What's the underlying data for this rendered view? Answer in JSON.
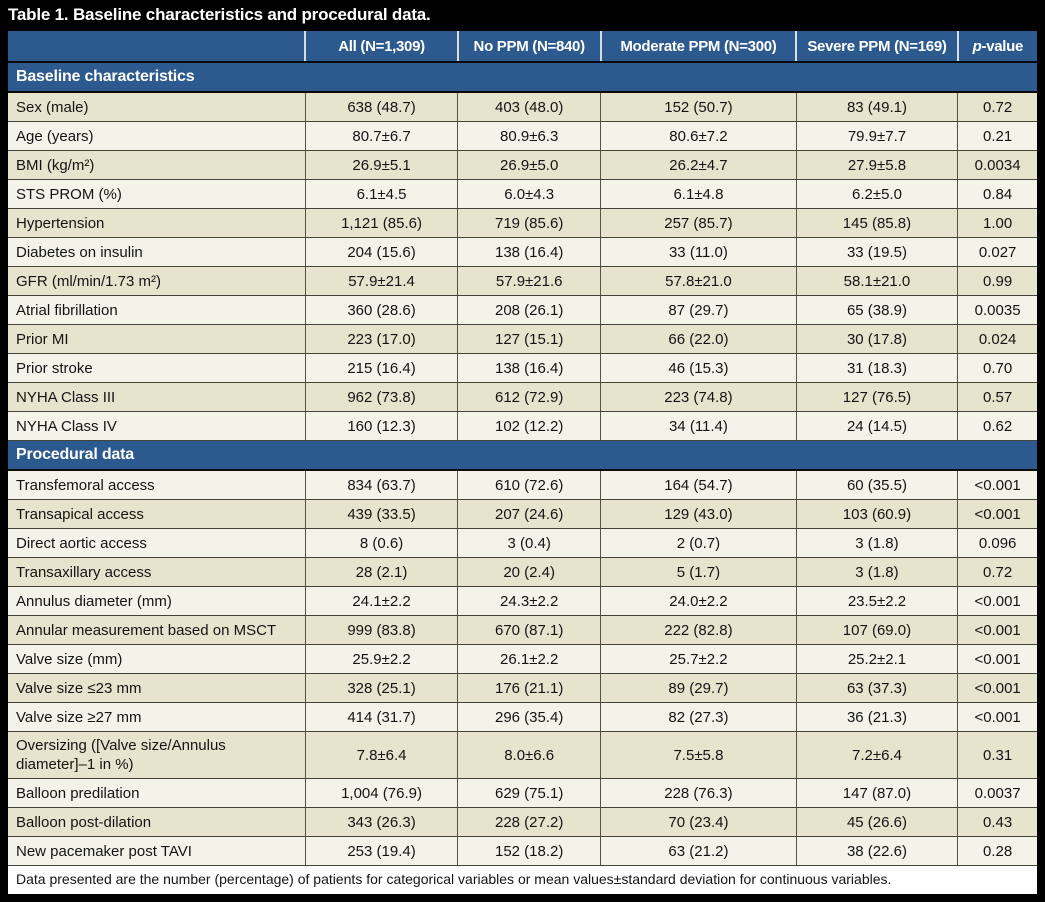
{
  "title": "Table 1. Baseline characteristics and procedural data.",
  "columns": [
    "",
    "All (N=1,309)",
    "No PPM (N=840)",
    "Moderate PPM (N=300)",
    "Severe PPM (N=169)"
  ],
  "pvalue_col": {
    "italic": "p",
    "rest": "-value"
  },
  "sections": [
    {
      "label": "Baseline characteristics",
      "rows": [
        {
          "label": "Sex (male)",
          "values": [
            "638 (48.7)",
            "403 (48.0)",
            "152 (50.7)",
            "83 (49.1)",
            "0.72"
          ]
        },
        {
          "label": "Age (years)",
          "values": [
            "80.7±6.7",
            "80.9±6.3",
            "80.6±7.2",
            "79.9±7.7",
            "0.21"
          ]
        },
        {
          "label": "BMI (kg/m²)",
          "values": [
            "26.9±5.1",
            "26.9±5.0",
            "26.2±4.7",
            "27.9±5.8",
            "0.0034"
          ]
        },
        {
          "label": "STS PROM (%)",
          "values": [
            "6.1±4.5",
            "6.0±4.3",
            "6.1±4.8",
            "6.2±5.0",
            "0.84"
          ]
        },
        {
          "label": "Hypertension",
          "values": [
            "1,121 (85.6)",
            "719 (85.6)",
            "257 (85.7)",
            "145 (85.8)",
            "1.00"
          ]
        },
        {
          "label": "Diabetes on insulin",
          "values": [
            "204 (15.6)",
            "138 (16.4)",
            "33 (11.0)",
            "33 (19.5)",
            "0.027"
          ]
        },
        {
          "label": "GFR (ml/min/1.73 m²)",
          "values": [
            "57.9±21.4",
            "57.9±21.6",
            "57.8±21.0",
            "58.1±21.0",
            "0.99"
          ]
        },
        {
          "label": "Atrial fibrillation",
          "values": [
            "360 (28.6)",
            "208 (26.1)",
            "87 (29.7)",
            "65 (38.9)",
            "0.0035"
          ]
        },
        {
          "label": "Prior MI",
          "values": [
            "223 (17.0)",
            "127 (15.1)",
            "66 (22.0)",
            "30 (17.8)",
            "0.024"
          ]
        },
        {
          "label": "Prior stroke",
          "values": [
            "215 (16.4)",
            "138 (16.4)",
            "46 (15.3)",
            "31 (18.3)",
            "0.70"
          ]
        },
        {
          "label": "NYHA Class III",
          "values": [
            "962 (73.8)",
            "612 (72.9)",
            "223 (74.8)",
            "127 (76.5)",
            "0.57"
          ]
        },
        {
          "label": "NYHA Class IV",
          "values": [
            "160 (12.3)",
            "102 (12.2)",
            "34 (11.4)",
            "24 (14.5)",
            "0.62"
          ]
        }
      ]
    },
    {
      "label": "Procedural data",
      "rows": [
        {
          "label": "Transfemoral access",
          "values": [
            "834 (63.7)",
            "610 (72.6)",
            "164 (54.7)",
            "60 (35.5)",
            "<0.001"
          ]
        },
        {
          "label": "Transapical access",
          "values": [
            "439 (33.5)",
            "207 (24.6)",
            "129 (43.0)",
            "103 (60.9)",
            "<0.001"
          ]
        },
        {
          "label": "Direct aortic access",
          "values": [
            "8 (0.6)",
            "3 (0.4)",
            "2 (0.7)",
            "3 (1.8)",
            "0.096"
          ]
        },
        {
          "label": "Transaxillary access",
          "values": [
            "28 (2.1)",
            "20 (2.4)",
            "5 (1.7)",
            "3 (1.8)",
            "0.72"
          ]
        },
        {
          "label": "Annulus diameter (mm)",
          "values": [
            "24.1±2.2",
            "24.3±2.2",
            "24.0±2.2",
            "23.5±2.2",
            "<0.001"
          ]
        },
        {
          "label": "Annular measurement based on MSCT",
          "values": [
            "999 (83.8)",
            "670 (87.1)",
            "222 (82.8)",
            "107 (69.0)",
            "<0.001"
          ]
        },
        {
          "label": "Valve size (mm)",
          "values": [
            "25.9±2.2",
            "26.1±2.2",
            "25.7±2.2",
            "25.2±2.1",
            "<0.001"
          ]
        },
        {
          "label": "Valve size ≤23 mm",
          "values": [
            "328 (25.1)",
            "176 (21.1)",
            "89 (29.7)",
            "63 (37.3)",
            "<0.001"
          ]
        },
        {
          "label": "Valve size ≥27 mm",
          "values": [
            "414 (31.7)",
            "296 (35.4)",
            "82 (27.3)",
            "36 (21.3)",
            "<0.001"
          ]
        },
        {
          "label": "Oversizing ([Valve size/Annulus diameter]–1 in %)",
          "values": [
            "7.8±6.4",
            "8.0±6.6",
            "7.5±5.8",
            "7.2±6.4",
            "0.31"
          ]
        },
        {
          "label": "Balloon predilation",
          "values": [
            "1,004 (76.9)",
            "629 (75.1)",
            "228 (76.3)",
            "147 (87.0)",
            "0.0037"
          ]
        },
        {
          "label": "Balloon post-dilation",
          "values": [
            "343 (26.3)",
            "228 (27.2)",
            "70 (23.4)",
            "45 (26.6)",
            "0.43"
          ]
        },
        {
          "label": "New pacemaker post TAVI",
          "values": [
            "253 (19.4)",
            "152 (18.2)",
            "63 (21.2)",
            "38 (22.6)",
            "0.28"
          ]
        }
      ]
    }
  ],
  "footnote": "Data presented are the number (percentage) of patients for categorical variables or mean values±standard deviation for continuous variables.",
  "colors": {
    "header_blue": "#2d5a8e",
    "row_beige": "#e6e4cd",
    "row_cream": "#f4f3e9",
    "frame_black": "#000000"
  }
}
